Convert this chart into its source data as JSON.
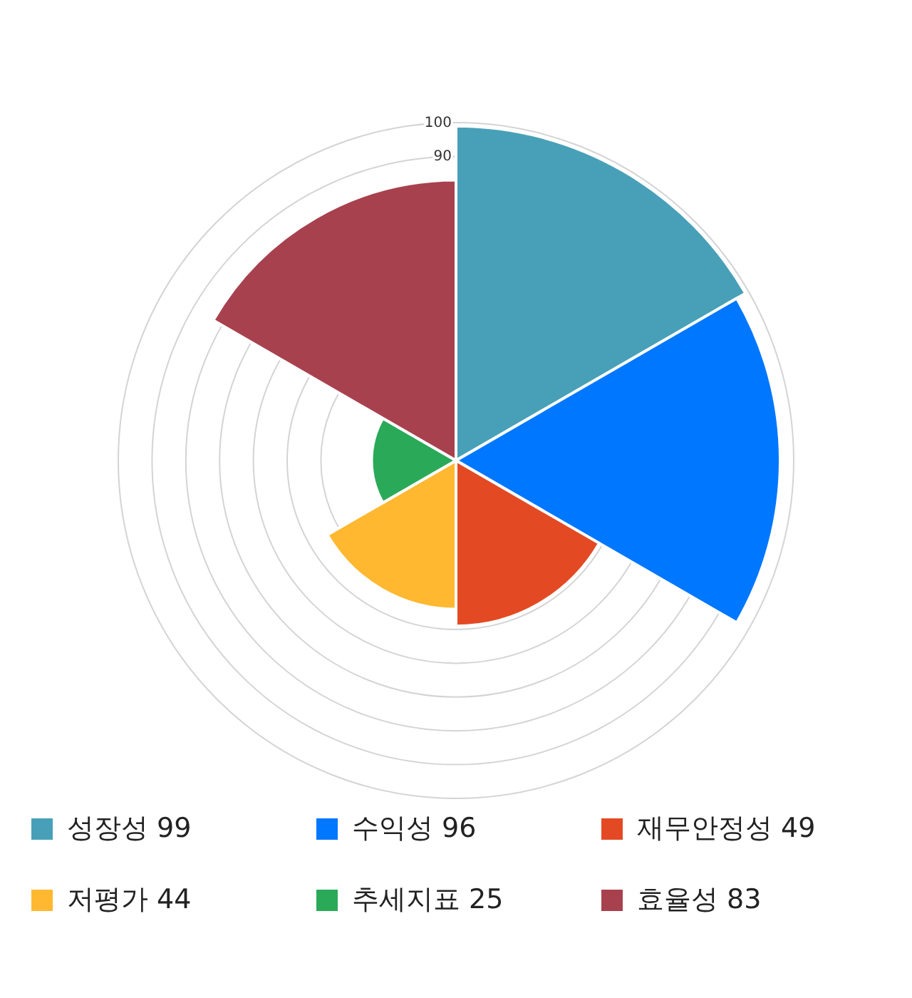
{
  "chart_data": {
    "type": "other",
    "categories": [
      "성장성",
      "수익성",
      "재무안정성",
      "저평가",
      "추세지표",
      "효율성"
    ],
    "values": [
      99,
      96,
      49,
      44,
      25,
      83
    ],
    "value_labels": [
      "99",
      "96",
      "49",
      "44",
      "25",
      "83"
    ],
    "colors": [
      "#48a0b8",
      "#0077ff",
      "#e34a24",
      "#ffb830",
      "#2aaa58",
      "#a8414e"
    ],
    "annotations": [
      "100",
      "90"
    ]
  }
}
